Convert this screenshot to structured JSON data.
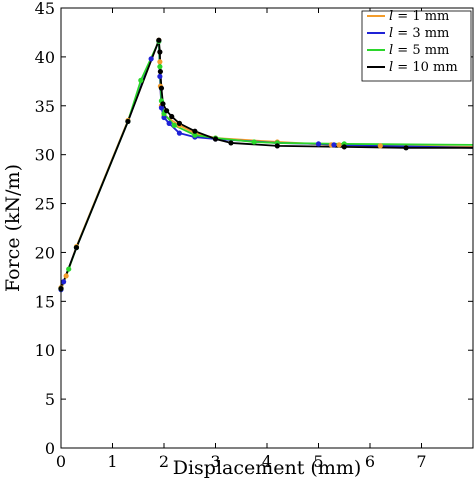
{
  "chart_data": {
    "type": "line",
    "xlabel": "Displacement (mm)",
    "ylabel": "Force (kN/m)",
    "xlim": [
      0,
      8
    ],
    "ylim": [
      0,
      45
    ],
    "x_ticks": [
      "0",
      "1",
      "2",
      "3",
      "4",
      "5",
      "6",
      "7"
    ],
    "y_ticks": [
      "0",
      "5",
      "10",
      "15",
      "20",
      "25",
      "30",
      "35",
      "40",
      "45"
    ],
    "grid": false,
    "legend_position": "top-right",
    "series": [
      {
        "name": "l = 1 mm",
        "legend_var": "l",
        "legend_rest": " = 1 mm",
        "color": "#F39C2B",
        "x": [
          0,
          0.05,
          0.1,
          0.3,
          1.3,
          1.9,
          1.92,
          1.93,
          1.95,
          2.0,
          2.3,
          2.6,
          3.0,
          4.2,
          5.25,
          5.4,
          6.2,
          8.0
        ],
        "y": [
          16.4,
          17.0,
          17.6,
          20.6,
          33.5,
          41.7,
          39.5,
          37.0,
          35.0,
          34.0,
          33.0,
          32.2,
          31.7,
          31.3,
          31.0,
          31.0,
          30.9,
          30.8
        ]
      },
      {
        "name": "l = 3 mm",
        "legend_var": "l",
        "legend_rest": " = 3 mm",
        "color": "#1F22D6",
        "x": [
          0,
          0.05,
          0.3,
          1.3,
          1.75,
          1.9,
          1.92,
          1.95,
          2.0,
          2.1,
          2.3,
          2.6,
          3.0,
          4.2,
          5.0,
          5.3,
          8.0
        ],
        "y": [
          16.2,
          17.0,
          20.5,
          33.4,
          39.8,
          41.6,
          38.0,
          34.8,
          33.8,
          33.2,
          32.2,
          31.8,
          31.6,
          31.2,
          31.1,
          31.0,
          30.7
        ]
      },
      {
        "name": "l = 5 mm",
        "legend_var": "l",
        "legend_rest": " = 5 mm",
        "color": "#2BD62B",
        "x": [
          0,
          0.15,
          0.3,
          1.3,
          1.55,
          1.9,
          1.92,
          1.95,
          2.0,
          2.2,
          2.6,
          3.0,
          3.75,
          4.2,
          5.5,
          8.0
        ],
        "y": [
          16.3,
          18.3,
          20.5,
          33.4,
          37.6,
          41.6,
          39.0,
          35.5,
          34.2,
          33.0,
          32.0,
          31.7,
          31.3,
          31.2,
          31.1,
          31.0
        ]
      },
      {
        "name": "l = 10 mm",
        "legend_var": "l",
        "legend_rest": " = 10 mm",
        "color": "#000000",
        "x": [
          0,
          0.3,
          1.3,
          1.9,
          1.92,
          1.93,
          1.95,
          1.98,
          2.05,
          2.15,
          2.3,
          2.6,
          3.0,
          3.3,
          4.2,
          5.5,
          6.7,
          8.0
        ],
        "y": [
          16.3,
          20.5,
          33.4,
          41.7,
          40.5,
          38.5,
          36.8,
          35.2,
          34.5,
          33.9,
          33.2,
          32.4,
          31.6,
          31.2,
          30.9,
          30.8,
          30.7,
          30.7
        ]
      }
    ]
  }
}
